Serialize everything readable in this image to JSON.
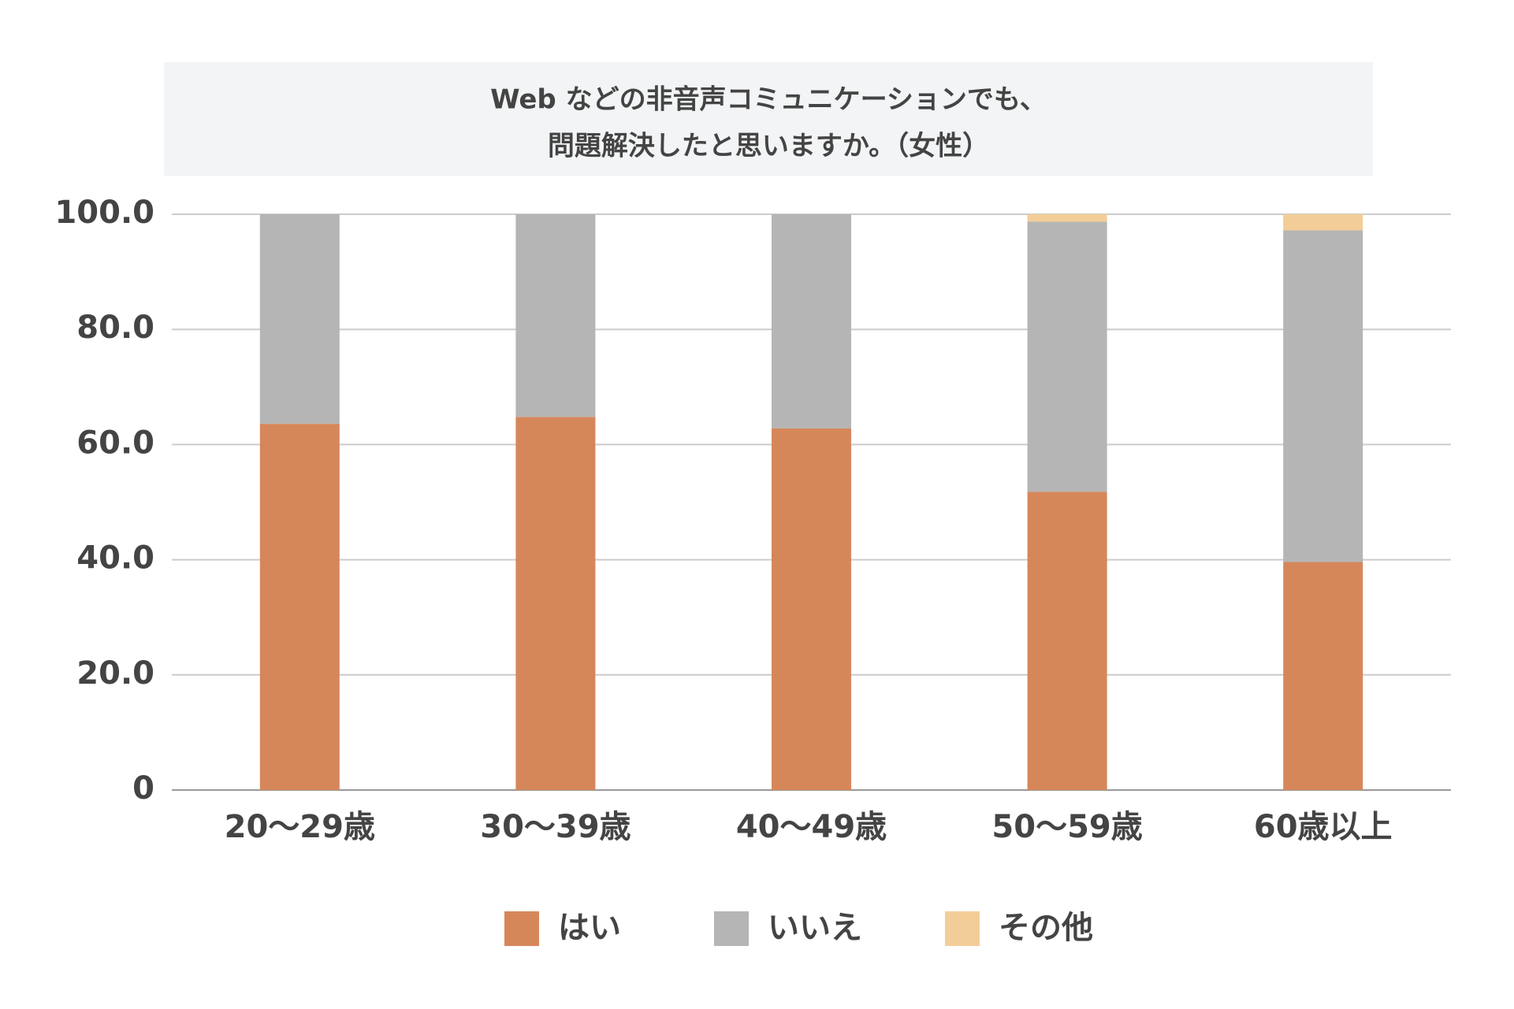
{
  "chart_data": {
    "type": "stacked_bar",
    "title": [
      "Web などの非音声コミュニケーションでも、",
      "問題解決したと思いますか。（女性）"
    ],
    "categories": [
      "20～29歳",
      "30～39歳",
      "40～49歳",
      "50～59歳",
      "60歳以上"
    ],
    "series": [
      {
        "name": "はい",
        "color": "#d6875a",
        "values": [
          63.6,
          64.8,
          62.8,
          51.8,
          39.6
        ]
      },
      {
        "name": "いいえ",
        "color": "#b5b5b5",
        "values": [
          36.4,
          35.2,
          37.2,
          46.9,
          57.6
        ]
      },
      {
        "name": "その他",
        "color": "#f3cd98",
        "values": [
          0,
          0,
          0,
          1.3,
          2.8
        ]
      }
    ],
    "ylim": [
      0,
      100
    ],
    "yticks": [
      0,
      {
        "value": 20,
        "label": "20.0"
      },
      {
        "value": 40,
        "label": "40.0"
      },
      {
        "value": 60,
        "label": "60.0"
      },
      {
        "value": 80,
        "label": "80.0"
      },
      {
        "value": 100,
        "label": "100.0"
      }
    ],
    "grid": true,
    "legend": "bottom"
  }
}
